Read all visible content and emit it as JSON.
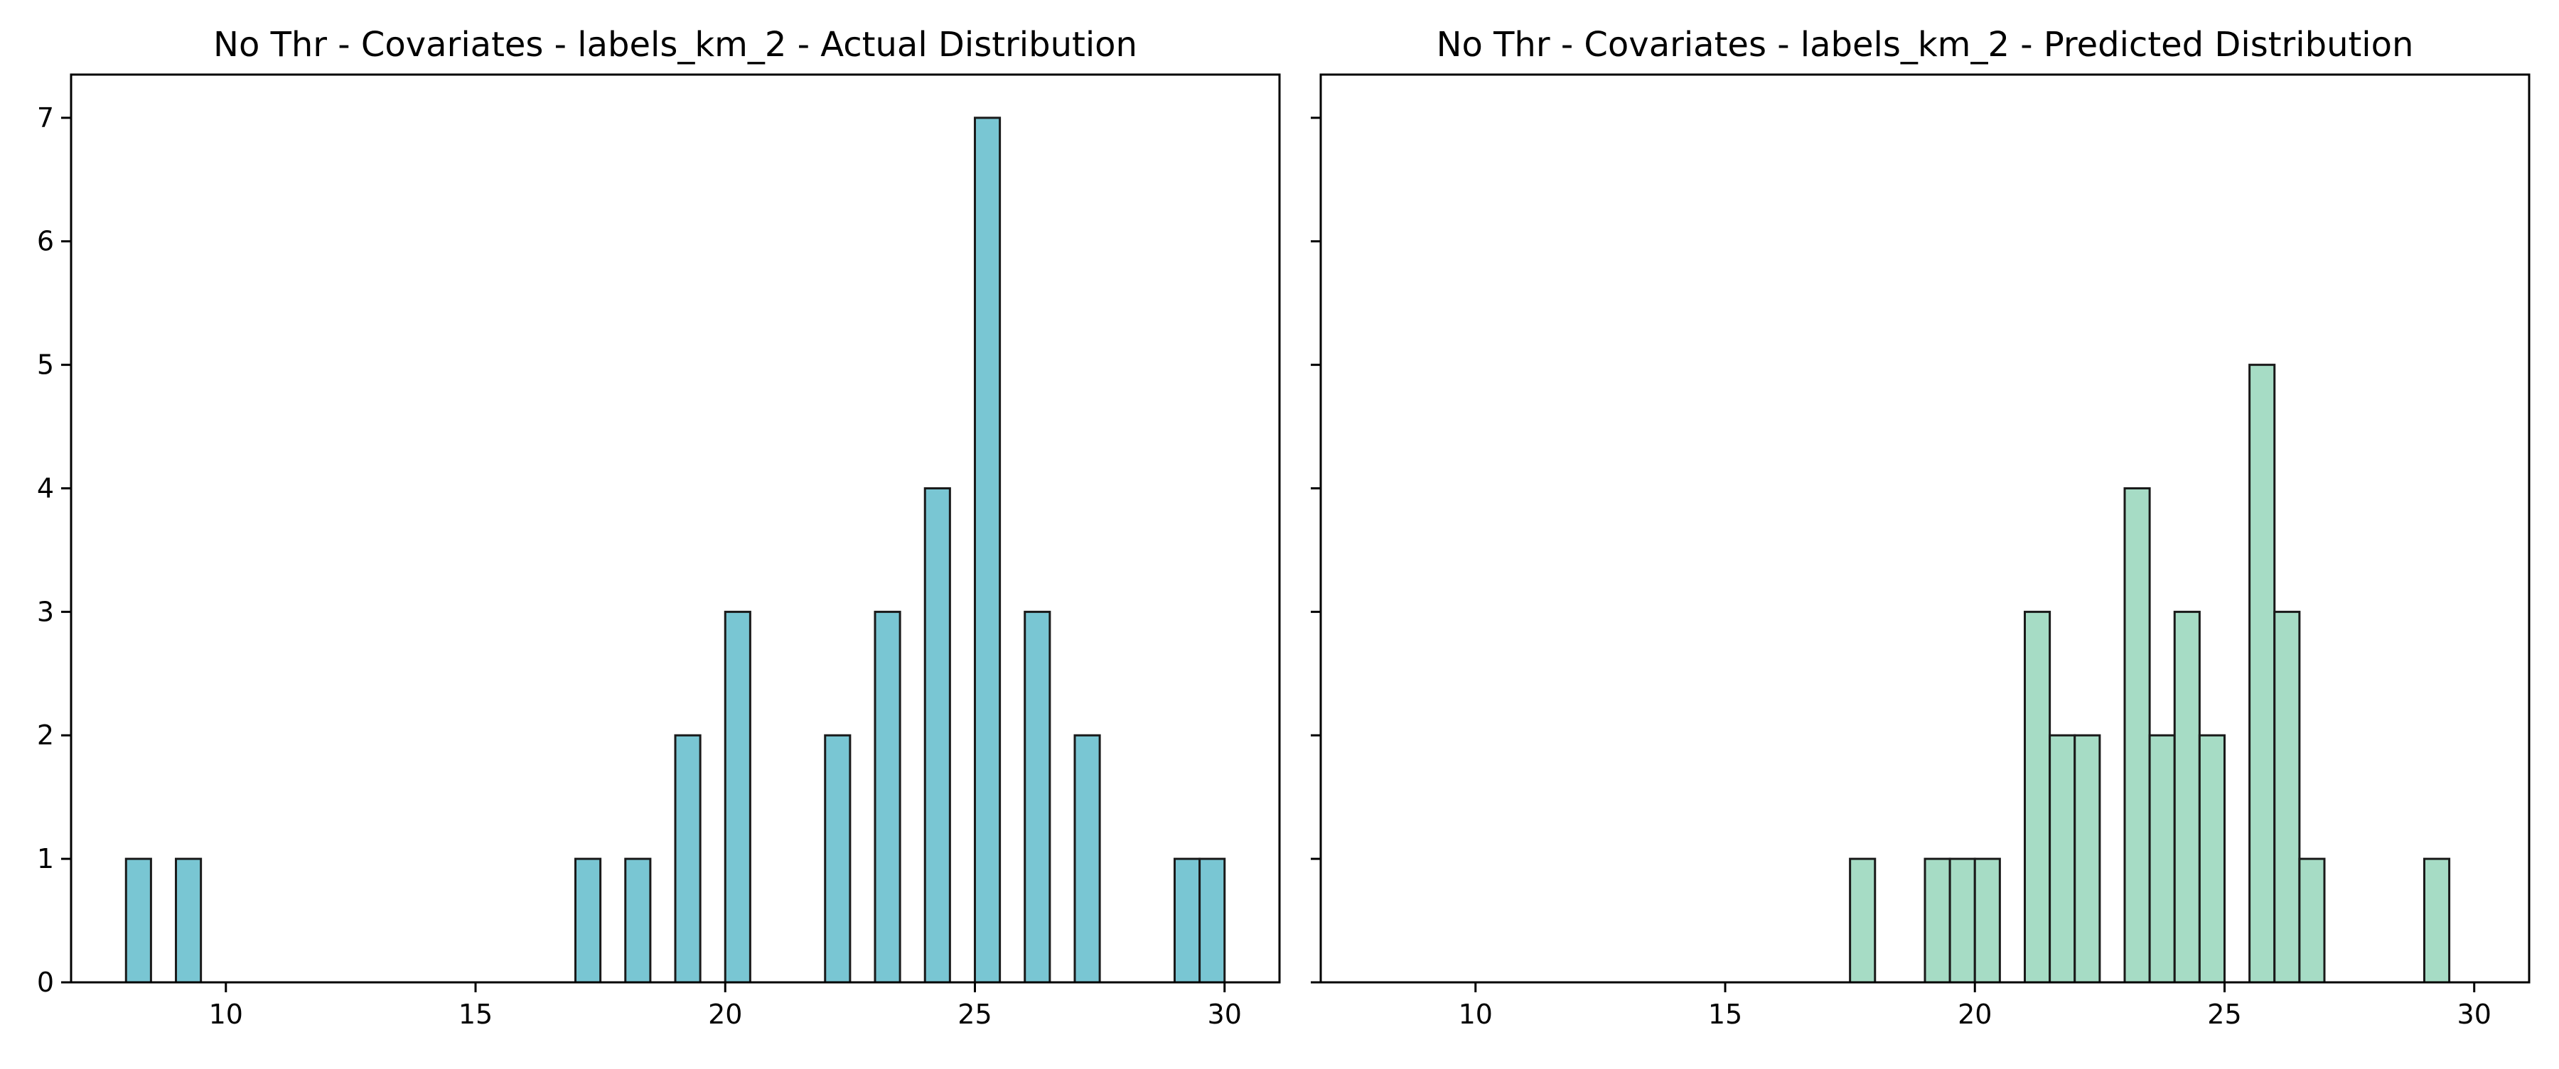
{
  "chart_data": [
    {
      "type": "bar",
      "title": "No Thr - Covariates - labels_km_2 - Actual Distribution",
      "xlabel": "",
      "ylabel": "",
      "color": "#79c6d3",
      "edge_color": "#1a1a1a",
      "xlim": [
        6.9,
        31.1
      ],
      "ylim": [
        0,
        7.35
      ],
      "xticks": [
        10,
        15,
        20,
        25,
        30
      ],
      "yticks": [
        0,
        1,
        2,
        3,
        4,
        5,
        6,
        7
      ],
      "grid": false,
      "bin_start": 8,
      "bin_width": 0.5,
      "values": [
        1,
        0,
        1,
        0,
        0,
        0,
        0,
        0,
        0,
        0,
        0,
        0,
        0,
        0,
        0,
        0,
        0,
        0,
        1,
        0,
        1,
        0,
        2,
        0,
        3,
        0,
        0,
        0,
        2,
        0,
        3,
        0,
        4,
        0,
        7,
        0,
        3,
        0,
        2,
        0,
        0,
        0,
        1,
        1
      ]
    },
    {
      "type": "bar",
      "title": "No Thr - Covariates - labels_km_2 - Predicted Distribution",
      "xlabel": "",
      "ylabel": "",
      "color": "#a6dcc5",
      "edge_color": "#1a1a1a",
      "xlim": [
        6.9,
        31.1
      ],
      "ylim": [
        0,
        7.35
      ],
      "xticks": [
        10,
        15,
        20,
        25,
        30
      ],
      "yticks": [
        0,
        1,
        2,
        3,
        4,
        5,
        6,
        7
      ],
      "grid": false,
      "bin_start": 8,
      "bin_width": 0.5,
      "values": [
        0,
        0,
        0,
        0,
        0,
        0,
        0,
        0,
        0,
        0,
        0,
        0,
        0,
        0,
        0,
        0,
        0,
        0,
        0,
        1,
        0,
        0,
        1,
        1,
        1,
        0,
        3,
        2,
        2,
        0,
        4,
        2,
        3,
        2,
        0,
        5,
        3,
        1,
        0,
        0,
        0,
        0,
        1,
        0,
        0,
        0
      ]
    }
  ]
}
